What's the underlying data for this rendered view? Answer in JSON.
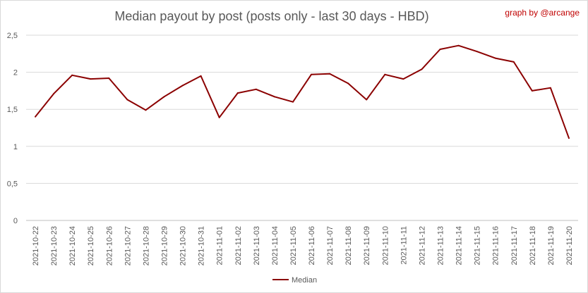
{
  "chart_data": {
    "type": "line",
    "title": "Median payout by post (posts only - last 30 days - HBD)",
    "credit": "graph by @arcange",
    "xlabel": "",
    "ylabel": "",
    "ylim": [
      0,
      2.5
    ],
    "yticks": [
      "0",
      "0,5",
      "1",
      "1,5",
      "2",
      "2,5"
    ],
    "grid": true,
    "legend_position": "bottom",
    "categories": [
      "2021-10-22",
      "2021-10-23",
      "2021-10-24",
      "2021-10-25",
      "2021-10-26",
      "2021-10-27",
      "2021-10-28",
      "2021-10-29",
      "2021-10-30",
      "2021-10-31",
      "2021-11-01",
      "2021-11-02",
      "2021-11-03",
      "2021-11-04",
      "2021-11-05",
      "2021-11-06",
      "2021-11-07",
      "2021-11-08",
      "2021-11-09",
      "2021-11-10",
      "2021-11-11",
      "2021-11-12",
      "2021-11-13",
      "2021-11-14",
      "2021-11-15",
      "2021-11-16",
      "2021-11-17",
      "2021-11-18",
      "2021-11-19",
      "2021-11-20"
    ],
    "series": [
      {
        "name": "Median",
        "color": "#8b0000",
        "values": [
          1.4,
          1.71,
          1.96,
          1.91,
          1.92,
          1.63,
          1.49,
          1.67,
          1.82,
          1.95,
          1.39,
          1.72,
          1.77,
          1.67,
          1.6,
          1.97,
          1.98,
          1.85,
          1.63,
          1.97,
          1.91,
          2.04,
          2.31,
          2.36,
          2.28,
          2.19,
          2.14,
          1.75,
          1.79,
          1.11
        ]
      }
    ]
  }
}
